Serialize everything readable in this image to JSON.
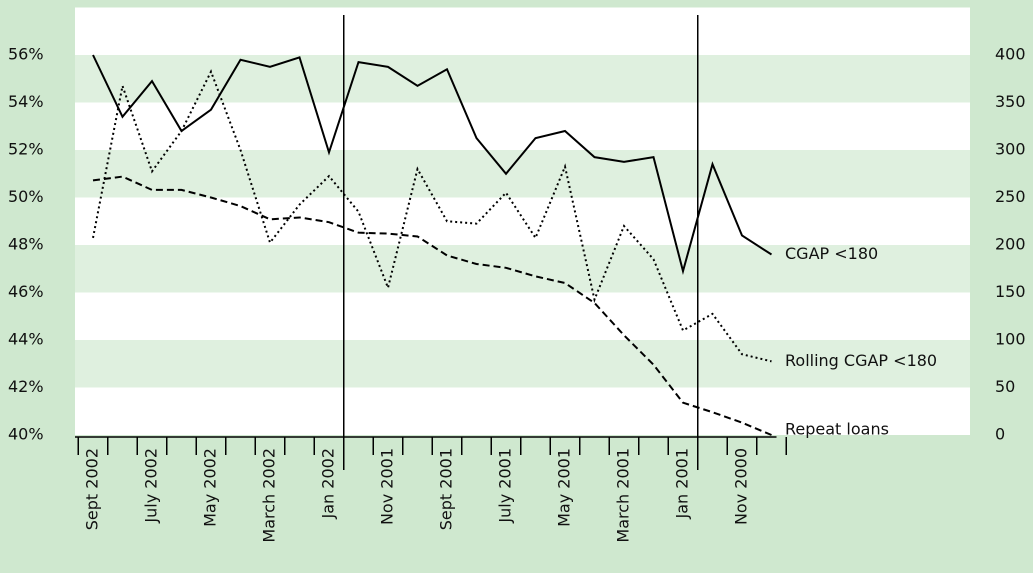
{
  "chart_data": {
    "type": "line",
    "categories": [
      "Sept 2002",
      null,
      "July 2002",
      null,
      "May 2002",
      null,
      "March 2002",
      null,
      "Jan 2002",
      null,
      "Nov 2001",
      null,
      "Sept 2001",
      null,
      "July 2001",
      null,
      "May 2001",
      null,
      "March 2001",
      null,
      "Jan 2001",
      null,
      "Nov 2000",
      null
    ],
    "series": [
      {
        "name": "CGAP <180",
        "color": "#000000",
        "line_style": "solid",
        "values": [
          56.0,
          53.4,
          54.9,
          52.8,
          53.7,
          55.8,
          55.5,
          55.9,
          51.9,
          55.7,
          55.5,
          54.7,
          55.4,
          52.5,
          51.0,
          52.5,
          52.8,
          51.7,
          51.5,
          51.7,
          46.9,
          51.4,
          48.4,
          47.6
        ]
      },
      {
        "name": "Rolling CGAP <180",
        "color": "#000000",
        "line_style": "dotted",
        "values": [
          48.3,
          54.7,
          51.1,
          52.8,
          55.3,
          52.0,
          48.1,
          49.7,
          50.9,
          49.4,
          46.2,
          51.2,
          49.0,
          48.9,
          50.2,
          48.3,
          51.3,
          45.7,
          48.8,
          47.4,
          44.4,
          45.1,
          43.4,
          43.1
        ]
      },
      {
        "name": "Repeat loans",
        "color": "#000000",
        "line_style": "dashed",
        "axis": "y2",
        "values": [
          268,
          272,
          258,
          258,
          250,
          241,
          227,
          229,
          224,
          213,
          212,
          209,
          189,
          180,
          176,
          167,
          160,
          139,
          105,
          74,
          34,
          24,
          13,
          0
        ]
      }
    ],
    "ylim": [
      40,
      58
    ],
    "yticks": [
      {
        "value": 40,
        "label": "40%"
      },
      {
        "value": 42,
        "label": "42%"
      },
      {
        "value": 44,
        "label": "44%"
      },
      {
        "value": 46,
        "label": "46%"
      },
      {
        "value": 48,
        "label": "48%"
      },
      {
        "value": 50,
        "label": "50%"
      },
      {
        "value": 52,
        "label": "52%"
      },
      {
        "value": 54,
        "label": "54%"
      },
      {
        "value": 56,
        "label": "56%"
      }
    ],
    "y2lim": [
      0,
      450
    ],
    "y2ticks": [
      0,
      50,
      100,
      150,
      200,
      250,
      300,
      350,
      400
    ],
    "grid": false,
    "band_color": "#dff0df",
    "plot_color": "#ffffff",
    "legend": "end"
  }
}
